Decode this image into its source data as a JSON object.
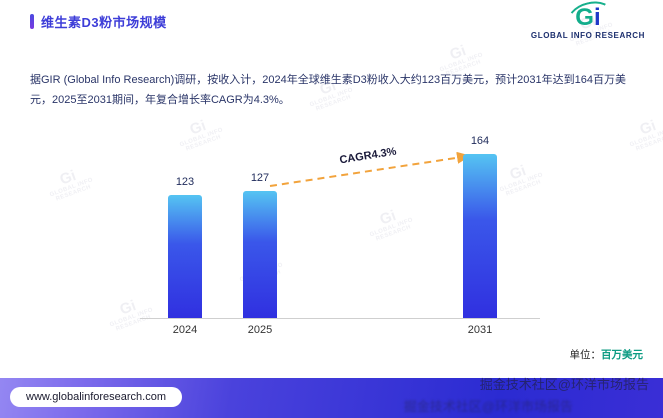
{
  "header": {
    "title": "维生素D3粉市场规模",
    "logo_g": "G",
    "logo_i": "i",
    "logo_text": "GLOBAL INFO RESEARCH"
  },
  "intro": {
    "text": "据GIR (Global Info Research)调研，按收入计，2024年全球维生素D3粉收入大约123百万美元，预计2031年达到164百万美元，2025至2031期间，年复合增长率CAGR为4.3%。"
  },
  "chart_data": {
    "type": "bar",
    "title": "维生素D3粉市场规模",
    "categories": [
      "2024",
      "2025",
      "2031"
    ],
    "values": [
      123,
      127,
      164
    ],
    "annotation": "CAGR4.3%",
    "unit_prefix": "单位：",
    "unit_value": "百万美元",
    "ylim": [
      0,
      186
    ],
    "bar_color_top": "#55c4f2",
    "bar_color_bottom": "#3030e0",
    "trend_color": "#f2a33c",
    "legend": "none",
    "grid": "off"
  },
  "watermarks": {
    "logo_gi": "Gi",
    "logo_text": "GLOBAL INFO RESEARCH",
    "stamp_text": "掘金技术社区@环洋市场报告"
  },
  "footer": {
    "url": "www.globalinforesearch.com"
  }
}
